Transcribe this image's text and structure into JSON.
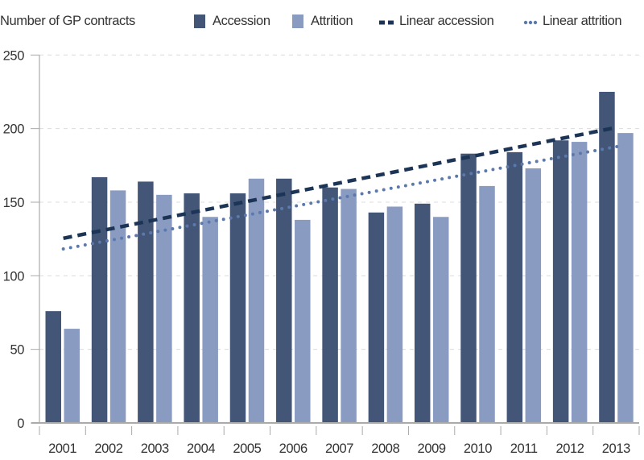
{
  "chart_data": {
    "type": "bar",
    "title": "",
    "ylabel": "Number of GP contracts",
    "xlabel": "",
    "ylim": [
      0,
      250
    ],
    "yticks": [
      0,
      50,
      100,
      150,
      200,
      250
    ],
    "grid": "horizontal dashed",
    "legend_position": "top",
    "categories": [
      "2001",
      "2002",
      "2003",
      "2004",
      "2005",
      "2006",
      "2007",
      "2008",
      "2009",
      "2010",
      "2011",
      "2012",
      "2013"
    ],
    "series": [
      {
        "name": "Accession",
        "color": "#435677",
        "values": [
          76,
          167,
          164,
          156,
          156,
          166,
          160,
          143,
          149,
          183,
          184,
          192,
          225
        ]
      },
      {
        "name": "Attrition",
        "color": "#8a9bc1",
        "values": [
          64,
          158,
          155,
          140,
          166,
          138,
          159,
          147,
          140,
          161,
          173,
          191,
          197
        ]
      }
    ],
    "trendlines": [
      {
        "name": "Linear accession",
        "of": "Accession",
        "style": "dashed",
        "color": "#1c3557"
      },
      {
        "name": "Linear attrition",
        "of": "Attrition",
        "style": "dotted",
        "color": "#5b79ad"
      }
    ]
  }
}
